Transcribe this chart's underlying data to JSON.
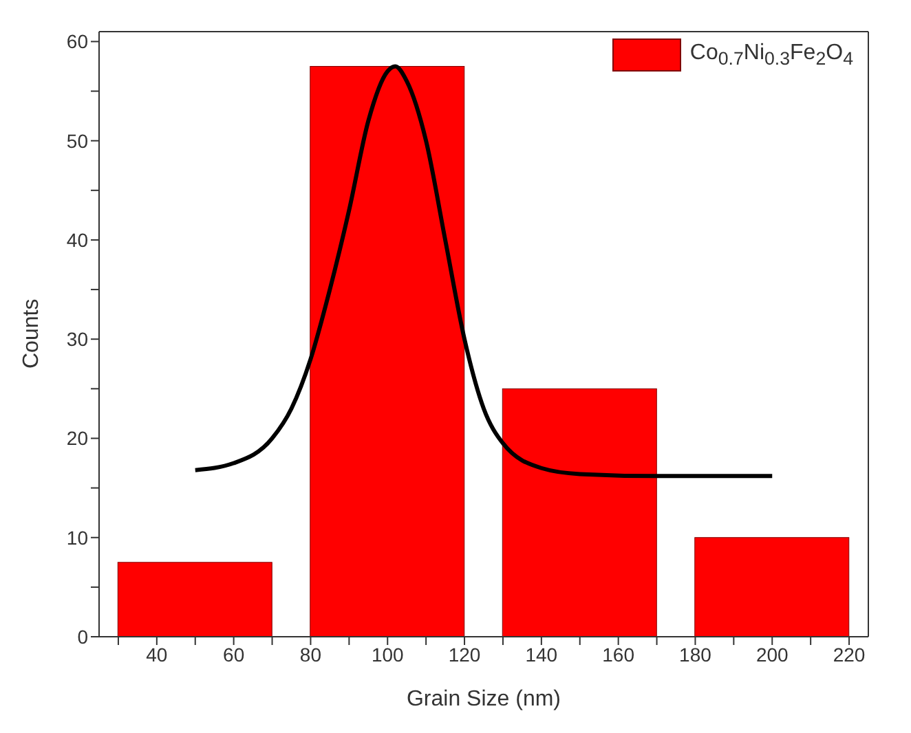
{
  "chart_data": {
    "type": "bar",
    "xlabel": "Grain Size (nm)",
    "ylabel": "Counts",
    "xlim": [
      25,
      225
    ],
    "xticks": [
      {
        "value": 30,
        "label": null
      },
      40,
      {
        "value": 50,
        "label": null
      },
      60,
      {
        "value": 70,
        "label": null
      },
      80,
      {
        "value": 90,
        "label": null
      },
      100,
      {
        "value": 110,
        "label": null
      },
      120,
      {
        "value": 130,
        "label": null
      },
      140,
      {
        "value": 150,
        "label": null
      },
      160,
      {
        "value": 170,
        "label": null
      },
      180,
      {
        "value": 190,
        "label": null
      },
      200,
      {
        "value": 210,
        "label": null
      },
      220
    ],
    "ylim": [
      0,
      61
    ],
    "yticks": [
      0,
      {
        "value": 5,
        "label": null
      },
      10,
      {
        "value": 15,
        "label": null
      },
      20,
      {
        "value": 25,
        "label": null
      },
      30,
      {
        "value": 35,
        "label": null
      },
      40,
      {
        "value": 45,
        "label": null
      },
      50,
      {
        "value": 55,
        "label": null
      },
      60
    ],
    "legend": "top right",
    "grid": false,
    "series": [
      {
        "name": "Co$_{0.7}$Ni$_{0.3}$Fe$_{2}$O$_{4}$",
        "color": "#ff0000",
        "x": [
          50,
          100,
          150,
          200
        ],
        "values": [
          7.5,
          57.5,
          25,
          10
        ]
      },
      {
        "type": "line",
        "color": "#000000",
        "x": [
          50,
          60,
          70,
          75,
          80,
          85,
          90,
          95,
          100,
          102,
          105,
          110,
          115,
          120,
          125,
          130,
          140,
          150,
          170,
          200
        ],
        "values": [
          16.8,
          17.5,
          20,
          23,
          28,
          35,
          43,
          52,
          57,
          57.5,
          56,
          50,
          40,
          30,
          23,
          19.5,
          17,
          16.4,
          16.2,
          16.2
        ]
      }
    ]
  }
}
